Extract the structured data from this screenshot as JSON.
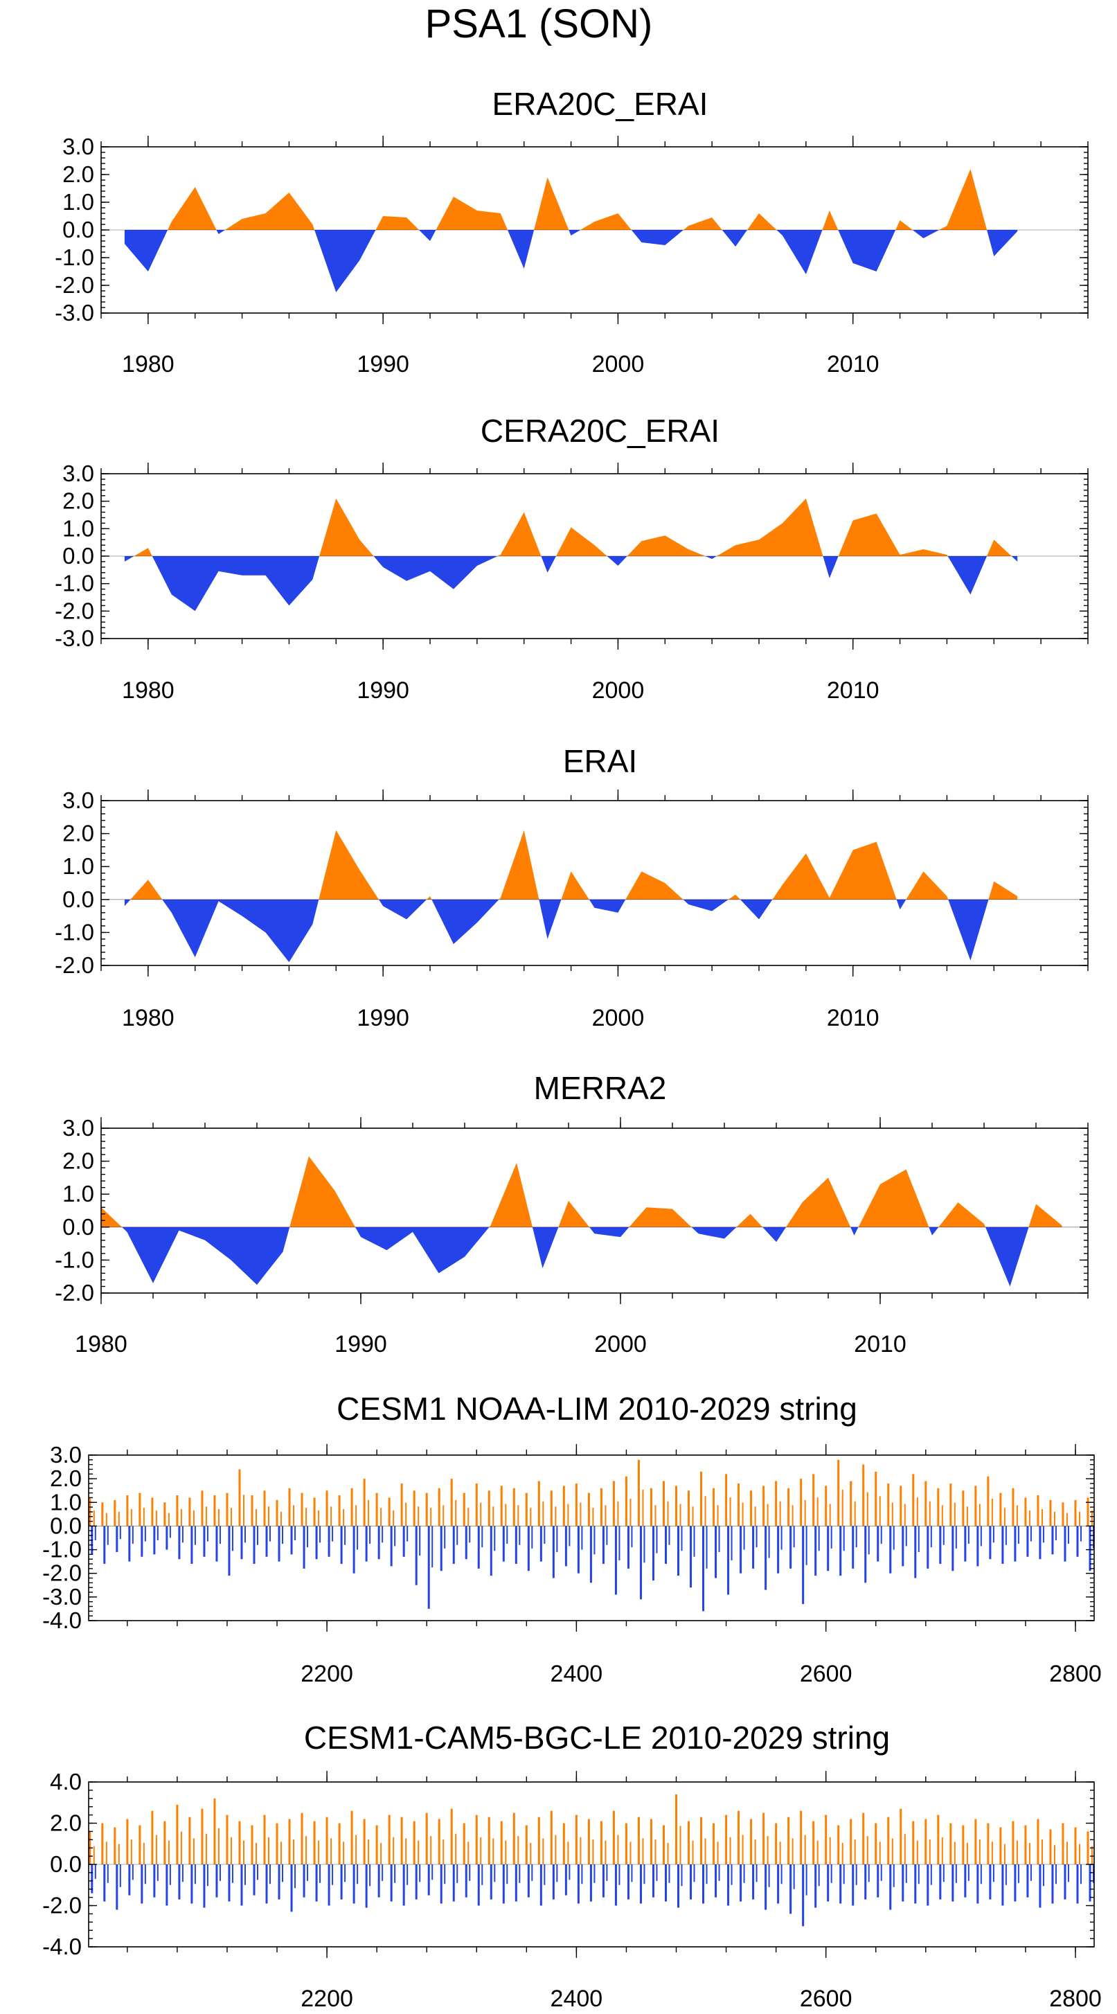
{
  "figure": {
    "title": "PSA1 (SON)",
    "colors": {
      "positive": "#FF8000",
      "negative": "#2443E8",
      "frame": "#000000"
    }
  },
  "chart_data": [
    {
      "type": "area",
      "title": "ERA20C_ERAI",
      "ylim": [
        -3.0,
        3.0
      ],
      "yticks": [
        "3.0",
        "2.0",
        "1.0",
        "0.0",
        "-1.0",
        "-2.0",
        "-3.0"
      ],
      "xlim": [
        1978,
        2020
      ],
      "xticks": [
        "1980",
        "1990",
        "2000",
        "2010"
      ],
      "x": [
        1979,
        1980,
        1981,
        1982,
        1983,
        1984,
        1985,
        1986,
        1987,
        1988,
        1989,
        1990,
        1991,
        1992,
        1993,
        1994,
        1995,
        1996,
        1997,
        1998,
        1999,
        2000,
        2001,
        2002,
        2003,
        2004,
        2005,
        2006,
        2007,
        2008,
        2009,
        2010,
        2011,
        2012,
        2013,
        2014,
        2015,
        2016,
        2017
      ],
      "values": [
        -0.5,
        -1.5,
        0.3,
        1.55,
        -0.15,
        0.4,
        0.6,
        1.35,
        0.2,
        -2.25,
        -1.1,
        0.5,
        0.45,
        -0.4,
        1.2,
        0.7,
        0.6,
        -1.4,
        1.9,
        -0.2,
        0.3,
        0.6,
        -0.45,
        -0.55,
        0.15,
        0.45,
        -0.6,
        0.6,
        -0.2,
        -1.6,
        0.7,
        -1.2,
        -1.5,
        0.35,
        -0.3,
        0.15,
        2.2,
        -0.95,
        -0.05
      ]
    },
    {
      "type": "area",
      "title": "CERA20C_ERAI",
      "ylim": [
        -3.0,
        3.0
      ],
      "yticks": [
        "3.0",
        "2.0",
        "1.0",
        "0.0",
        "-1.0",
        "-2.0",
        "-3.0"
      ],
      "xlim": [
        1978,
        2020
      ],
      "xticks": [
        "1980",
        "1990",
        "2000",
        "2010"
      ],
      "x": [
        1979,
        1980,
        1981,
        1982,
        1983,
        1984,
        1985,
        1986,
        1987,
        1988,
        1989,
        1990,
        1991,
        1992,
        1993,
        1994,
        1995,
        1996,
        1997,
        1998,
        1999,
        2000,
        2001,
        2002,
        2003,
        2004,
        2005,
        2006,
        2007,
        2008,
        2009,
        2010,
        2011,
        2012,
        2013,
        2014,
        2015,
        2016,
        2017
      ],
      "values": [
        -0.2,
        0.3,
        -1.4,
        -2.0,
        -0.55,
        -0.7,
        -0.7,
        -1.8,
        -0.85,
        2.1,
        0.6,
        -0.4,
        -0.9,
        -0.55,
        -1.2,
        -0.35,
        0.05,
        1.6,
        -0.6,
        1.05,
        0.4,
        -0.35,
        0.55,
        0.75,
        0.25,
        -0.1,
        0.4,
        0.6,
        1.2,
        2.1,
        -0.8,
        1.3,
        1.55,
        0.05,
        0.25,
        0.05,
        -1.4,
        0.6,
        -0.2
      ]
    },
    {
      "type": "area",
      "title": "ERAI",
      "ylim": [
        -2.0,
        3.0
      ],
      "yticks": [
        "3.0",
        "2.0",
        "1.0",
        "0.0",
        "-1.0",
        "-2.0"
      ],
      "xlim": [
        1978,
        2020
      ],
      "xticks": [
        "1980",
        "1990",
        "2000",
        "2010"
      ],
      "x": [
        1979,
        1980,
        1981,
        1982,
        1983,
        1984,
        1985,
        1986,
        1987,
        1988,
        1989,
        1990,
        1991,
        1992,
        1993,
        1994,
        1995,
        1996,
        1997,
        1998,
        1999,
        2000,
        2001,
        2002,
        2003,
        2004,
        2005,
        2006,
        2007,
        2008,
        2009,
        2010,
        2011,
        2012,
        2013,
        2014,
        2015,
        2016,
        2017
      ],
      "values": [
        -0.2,
        0.6,
        -0.4,
        -1.75,
        -0.05,
        -0.5,
        -1.0,
        -1.9,
        -0.75,
        2.1,
        0.9,
        -0.2,
        -0.6,
        0.1,
        -1.35,
        -0.7,
        0.05,
        2.1,
        -1.2,
        0.85,
        -0.25,
        -0.4,
        0.85,
        0.5,
        -0.15,
        -0.35,
        0.15,
        -0.6,
        0.45,
        1.4,
        0.05,
        1.5,
        1.75,
        -0.3,
        0.85,
        0.1,
        -1.85,
        0.55,
        0.1
      ]
    },
    {
      "type": "area",
      "title": "MERRA2",
      "ylim": [
        -2.0,
        3.0
      ],
      "yticks": [
        "3.0",
        "2.0",
        "1.0",
        "0.0",
        "-1.0",
        "-2.0"
      ],
      "xlim": [
        1980,
        2018
      ],
      "xticks": [
        "1980",
        "1990",
        "2000",
        "2010"
      ],
      "x": [
        1980,
        1981,
        1982,
        1983,
        1984,
        1985,
        1986,
        1987,
        1988,
        1989,
        1990,
        1991,
        1992,
        1993,
        1994,
        1995,
        1996,
        1997,
        1998,
        1999,
        2000,
        2001,
        2002,
        2003,
        2004,
        2005,
        2006,
        2007,
        2008,
        2009,
        2010,
        2011,
        2012,
        2013,
        2014,
        2015,
        2016,
        2017
      ],
      "values": [
        0.6,
        -0.15,
        -1.7,
        -0.1,
        -0.4,
        -1.0,
        -1.75,
        -0.75,
        2.15,
        1.1,
        -0.3,
        -0.7,
        -0.15,
        -1.4,
        -0.9,
        0.05,
        1.95,
        -1.25,
        0.8,
        -0.2,
        -0.3,
        0.6,
        0.55,
        -0.2,
        -0.35,
        0.4,
        -0.45,
        0.75,
        1.5,
        -0.25,
        1.3,
        1.75,
        -0.25,
        0.75,
        0.1,
        -1.8,
        0.7,
        0.05
      ]
    },
    {
      "type": "bar",
      "title": "CESM1 NOAA-LIM 2010-2029 string",
      "ylim": [
        -4.0,
        3.0
      ],
      "yticks": [
        "3.0",
        "2.0",
        "1.0",
        "0.0",
        "-1.0",
        "-2.0",
        "-3.0",
        "-4.0"
      ],
      "xlim": [
        2009,
        2815
      ],
      "xticks": [
        "2200",
        "2400",
        "2600",
        "2800"
      ],
      "x": [
        2010,
        2020,
        2030,
        2040,
        2050,
        2060,
        2070,
        2080,
        2090,
        2100,
        2110,
        2120,
        2130,
        2140,
        2150,
        2160,
        2170,
        2180,
        2190,
        2200,
        2210,
        2220,
        2230,
        2240,
        2250,
        2260,
        2270,
        2280,
        2290,
        2300,
        2310,
        2320,
        2330,
        2340,
        2350,
        2360,
        2370,
        2380,
        2390,
        2400,
        2410,
        2420,
        2430,
        2440,
        2450,
        2460,
        2470,
        2480,
        2490,
        2500,
        2510,
        2520,
        2530,
        2540,
        2550,
        2560,
        2570,
        2580,
        2590,
        2600,
        2610,
        2620,
        2630,
        2640,
        2650,
        2660,
        2670,
        2680,
        2690,
        2700,
        2710,
        2720,
        2730,
        2740,
        2750,
        2760,
        2770,
        2780,
        2790,
        2800,
        2810
      ],
      "values_pos": [
        1.2,
        1.0,
        1.1,
        1.3,
        1.4,
        1.2,
        1.0,
        1.3,
        1.2,
        1.5,
        1.3,
        1.4,
        2.4,
        1.3,
        1.5,
        1.1,
        1.6,
        1.4,
        1.2,
        1.5,
        1.3,
        1.6,
        2.0,
        1.4,
        1.2,
        1.8,
        1.5,
        1.4,
        1.6,
        2.0,
        1.4,
        1.8,
        1.5,
        1.7,
        1.6,
        1.4,
        1.9,
        1.5,
        1.7,
        1.8,
        1.4,
        1.6,
        1.9,
        2.1,
        2.8,
        1.6,
        1.9,
        1.7,
        1.5,
        2.3,
        1.6,
        2.2,
        1.8,
        1.5,
        1.7,
        1.9,
        1.6,
        2.0,
        2.2,
        1.7,
        2.8,
        1.9,
        2.6,
        2.3,
        1.8,
        1.7,
        2.2,
        1.9,
        1.6,
        1.8,
        1.5,
        1.7,
        2.1,
        1.4,
        1.6,
        1.2,
        1.3,
        1.1,
        1.0,
        1.1,
        1.2
      ],
      "values_neg": [
        -1.2,
        -1.6,
        -1.1,
        -1.5,
        -1.3,
        -1.2,
        -1.0,
        -1.4,
        -1.6,
        -1.3,
        -1.5,
        -2.1,
        -1.4,
        -1.6,
        -1.3,
        -1.5,
        -1.2,
        -1.8,
        -1.4,
        -1.3,
        -1.6,
        -2.0,
        -1.5,
        -1.4,
        -1.7,
        -1.3,
        -2.5,
        -3.5,
        -1.9,
        -1.6,
        -1.4,
        -1.8,
        -2.1,
        -1.5,
        -1.6,
        -1.9,
        -1.5,
        -2.2,
        -1.7,
        -2.0,
        -2.4,
        -1.6,
        -2.9,
        -1.8,
        -3.1,
        -2.3,
        -1.6,
        -2.1,
        -2.6,
        -3.6,
        -2.2,
        -2.9,
        -2.0,
        -1.8,
        -2.7,
        -2.0,
        -1.8,
        -3.3,
        -2.1,
        -1.9,
        -2.1,
        -1.8,
        -2.4,
        -1.5,
        -2.0,
        -1.7,
        -2.2,
        -1.8,
        -1.6,
        -1.9,
        -1.5,
        -1.7,
        -1.4,
        -1.6,
        -1.5,
        -1.3,
        -1.4,
        -1.2,
        -1.5,
        -1.3,
        -1.9
      ]
    },
    {
      "type": "bar",
      "title": "CESM1-CAM5-BGC-LE 2010-2029 string",
      "ylim": [
        -4.0,
        4.0
      ],
      "yticks": [
        "4.0",
        "2.0",
        "0.0",
        "-2.0",
        "-4.0"
      ],
      "xlim": [
        2009,
        2815
      ],
      "xticks": [
        "2200",
        "2400",
        "2600",
        "2800"
      ],
      "x": [
        2010,
        2020,
        2030,
        2040,
        2050,
        2060,
        2070,
        2080,
        2090,
        2100,
        2110,
        2120,
        2130,
        2140,
        2150,
        2160,
        2170,
        2180,
        2190,
        2200,
        2210,
        2220,
        2230,
        2240,
        2250,
        2260,
        2270,
        2280,
        2290,
        2300,
        2310,
        2320,
        2330,
        2340,
        2350,
        2360,
        2370,
        2380,
        2390,
        2400,
        2410,
        2420,
        2430,
        2440,
        2450,
        2460,
        2470,
        2480,
        2490,
        2500,
        2510,
        2520,
        2530,
        2540,
        2550,
        2560,
        2570,
        2580,
        2590,
        2600,
        2610,
        2620,
        2630,
        2640,
        2650,
        2660,
        2670,
        2680,
        2690,
        2700,
        2710,
        2720,
        2730,
        2740,
        2750,
        2760,
        2770,
        2780,
        2790,
        2800,
        2810
      ],
      "values_pos": [
        1.6,
        2.0,
        1.8,
        2.2,
        1.9,
        2.6,
        2.1,
        2.9,
        2.3,
        2.7,
        3.2,
        2.4,
        2.1,
        1.9,
        2.4,
        2.0,
        2.2,
        2.5,
        2.1,
        2.3,
        2.0,
        2.6,
        2.2,
        1.9,
        2.4,
        2.3,
        2.1,
        2.5,
        2.2,
        2.7,
        2.0,
        2.4,
        2.3,
        2.1,
        2.5,
        1.9,
        2.3,
        2.6,
        2.0,
        2.4,
        2.2,
        2.1,
        2.6,
        2.0,
        2.3,
        2.2,
        1.9,
        3.4,
        2.1,
        2.3,
        2.0,
        2.4,
        2.6,
        2.2,
        2.5,
        2.0,
        2.3,
        2.6,
        2.1,
        2.4,
        1.9,
        2.2,
        2.5,
        2.0,
        2.3,
        2.7,
        2.1,
        2.2,
        2.4,
        2.0,
        1.9,
        2.2,
        2.0,
        1.8,
        2.1,
        1.9,
        2.2,
        1.7,
        2.0,
        1.8,
        1.6
      ],
      "values_neg": [
        -1.4,
        -1.8,
        -2.2,
        -1.5,
        -1.9,
        -1.6,
        -2.0,
        -1.7,
        -1.9,
        -2.1,
        -1.6,
        -1.8,
        -2.0,
        -1.5,
        -1.9,
        -1.7,
        -2.3,
        -1.6,
        -1.8,
        -2.0,
        -1.7,
        -1.9,
        -2.1,
        -1.6,
        -1.8,
        -2.0,
        -1.7,
        -1.5,
        -1.9,
        -1.8,
        -1.6,
        -2.0,
        -1.7,
        -1.9,
        -1.8,
        -1.6,
        -2.0,
        -1.7,
        -1.5,
        -1.9,
        -1.8,
        -1.6,
        -2.0,
        -1.7,
        -1.9,
        -1.6,
        -1.8,
        -2.1,
        -1.7,
        -1.9,
        -1.6,
        -2.0,
        -1.8,
        -1.7,
        -2.2,
        -1.9,
        -2.4,
        -3.0,
        -2.1,
        -1.8,
        -1.9,
        -2.0,
        -1.7,
        -1.6,
        -2.2,
        -1.8,
        -1.9,
        -2.0,
        -1.7,
        -1.8,
        -1.6,
        -1.9,
        -1.7,
        -2.0,
        -1.8,
        -1.6,
        -2.1,
        -1.9,
        -1.7,
        -1.9,
        -1.8
      ]
    }
  ]
}
